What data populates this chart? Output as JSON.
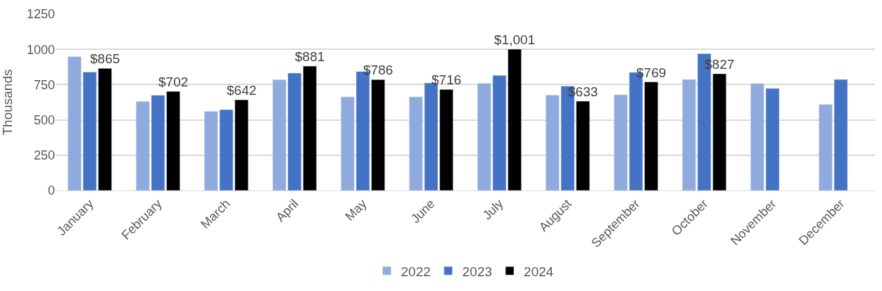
{
  "chart_data": {
    "type": "bar",
    "ylabel": "Thousands",
    "categories": [
      "January",
      "February",
      "March",
      "April",
      "May",
      "June",
      "July",
      "August",
      "September",
      "October",
      "November",
      "December"
    ],
    "series": [
      {
        "name": "2022",
        "color": "#8faadc",
        "values": [
          949,
          631,
          561,
          786,
          663,
          663,
          760,
          676,
          678,
          787,
          758,
          610
        ]
      },
      {
        "name": "2023",
        "color": "#4472c4",
        "values": [
          839,
          675,
          573,
          832,
          843,
          762,
          816,
          740,
          837,
          970,
          723,
          787
        ]
      },
      {
        "name": "2024",
        "color": "#000000",
        "values": [
          865,
          702,
          642,
          881,
          786,
          716,
          1001,
          633,
          769,
          827,
          null,
          null
        ],
        "value_labels": [
          "$865",
          "$702",
          "$642",
          "$881",
          "$786",
          "$716",
          "$1,001",
          "$633",
          "$769",
          "$827",
          null,
          null
        ]
      }
    ],
    "ylim": [
      0,
      1250
    ],
    "yticks": [
      0,
      250,
      500,
      750,
      1000,
      1250
    ],
    "grid": "y",
    "legend": "bottom"
  }
}
